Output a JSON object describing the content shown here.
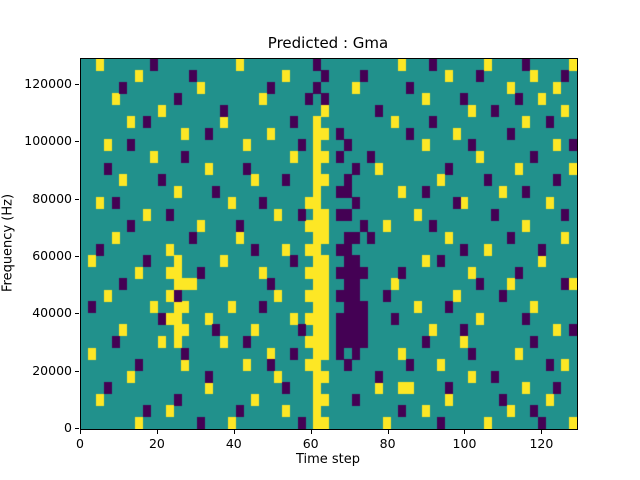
{
  "chart_data": {
    "type": "heatmap",
    "title": "Predicted : Gma",
    "xlabel": "Time step",
    "ylabel": "Frequency (Hz)",
    "xlim": [
      0,
      129
    ],
    "ylim": [
      0,
      129000
    ],
    "xticks": [
      0,
      20,
      40,
      60,
      80,
      100,
      120
    ],
    "yticks": [
      0,
      20000,
      40000,
      60000,
      80000,
      100000,
      120000
    ],
    "colormap": "viridis",
    "colors": {
      "background": "#21918c",
      "yellow": "#fde725",
      "purple": "#440154"
    },
    "grid": {
      "cols": 64,
      "rows": 32
    },
    "yellow_cells": [
      [
        30,
        5
      ],
      [
        30,
        6
      ],
      [
        31,
        6
      ],
      [
        30,
        7
      ],
      [
        30,
        8
      ],
      [
        31,
        8
      ],
      [
        30,
        9
      ],
      [
        30,
        10
      ],
      [
        31,
        10
      ],
      [
        30,
        11
      ],
      [
        29,
        12
      ],
      [
        30,
        12
      ],
      [
        30,
        13
      ],
      [
        31,
        13
      ],
      [
        29,
        14
      ],
      [
        30,
        14
      ],
      [
        31,
        14
      ],
      [
        30,
        15
      ],
      [
        31,
        15
      ],
      [
        29,
        16
      ],
      [
        30,
        16
      ],
      [
        30,
        17
      ],
      [
        31,
        17
      ],
      [
        29,
        18
      ],
      [
        30,
        18
      ],
      [
        31,
        18
      ],
      [
        30,
        19
      ],
      [
        31,
        19
      ],
      [
        29,
        20
      ],
      [
        30,
        20
      ],
      [
        31,
        20
      ],
      [
        30,
        21
      ],
      [
        31,
        21
      ],
      [
        29,
        22
      ],
      [
        30,
        22
      ],
      [
        31,
        22
      ],
      [
        30,
        23
      ],
      [
        31,
        23
      ],
      [
        29,
        24
      ],
      [
        30,
        24
      ],
      [
        31,
        24
      ],
      [
        30,
        25
      ],
      [
        31,
        25
      ],
      [
        29,
        26
      ],
      [
        30,
        26
      ],
      [
        30,
        27
      ],
      [
        31,
        27
      ],
      [
        30,
        28
      ],
      [
        30,
        29
      ],
      [
        31,
        29
      ],
      [
        30,
        30
      ],
      [
        30,
        31
      ],
      [
        31,
        31
      ],
      [
        12,
        17
      ],
      [
        11,
        18
      ],
      [
        12,
        18
      ],
      [
        12,
        19
      ],
      [
        13,
        19
      ],
      [
        11,
        20
      ],
      [
        12,
        20
      ],
      [
        12,
        21
      ],
      [
        13,
        21
      ],
      [
        11,
        22
      ],
      [
        12,
        22
      ],
      [
        12,
        23
      ],
      [
        13,
        23
      ],
      [
        12,
        24
      ],
      [
        2,
        0
      ],
      [
        20,
        0
      ],
      [
        41,
        0
      ],
      [
        52,
        0
      ],
      [
        63,
        0
      ],
      [
        7,
        1
      ],
      [
        26,
        1
      ],
      [
        47,
        1
      ],
      [
        58,
        1
      ],
      [
        15,
        2
      ],
      [
        35,
        2
      ],
      [
        55,
        2
      ],
      [
        61,
        2
      ],
      [
        4,
        3
      ],
      [
        23,
        3
      ],
      [
        44,
        3
      ],
      [
        59,
        3
      ],
      [
        10,
        4
      ],
      [
        31,
        4
      ],
      [
        50,
        4
      ],
      [
        62,
        4
      ],
      [
        6,
        5
      ],
      [
        18,
        5
      ],
      [
        40,
        5
      ],
      [
        57,
        5
      ],
      [
        13,
        6
      ],
      [
        24,
        6
      ],
      [
        48,
        6
      ],
      [
        3,
        7
      ],
      [
        21,
        7
      ],
      [
        44,
        7
      ],
      [
        61,
        7
      ],
      [
        9,
        8
      ],
      [
        27,
        8
      ],
      [
        51,
        8
      ],
      [
        16,
        9
      ],
      [
        38,
        9
      ],
      [
        56,
        9
      ],
      [
        63,
        9
      ],
      [
        5,
        10
      ],
      [
        22,
        10
      ],
      [
        46,
        10
      ],
      [
        12,
        11
      ],
      [
        41,
        11
      ],
      [
        54,
        11
      ],
      [
        2,
        12
      ],
      [
        19,
        12
      ],
      [
        49,
        12
      ],
      [
        60,
        12
      ],
      [
        8,
        13
      ],
      [
        25,
        13
      ],
      [
        43,
        13
      ],
      [
        15,
        14
      ],
      [
        39,
        14
      ],
      [
        57,
        14
      ],
      [
        4,
        15
      ],
      [
        20,
        15
      ],
      [
        47,
        15
      ],
      [
        62,
        15
      ],
      [
        11,
        16
      ],
      [
        26,
        16
      ],
      [
        52,
        16
      ],
      [
        1,
        17
      ],
      [
        18,
        17
      ],
      [
        44,
        17
      ],
      [
        59,
        17
      ],
      [
        7,
        18
      ],
      [
        23,
        18
      ],
      [
        50,
        18
      ],
      [
        14,
        19
      ],
      [
        40,
        19
      ],
      [
        55,
        19
      ],
      [
        63,
        19
      ],
      [
        3,
        20
      ],
      [
        25,
        20
      ],
      [
        48,
        20
      ],
      [
        9,
        21
      ],
      [
        19,
        21
      ],
      [
        43,
        21
      ],
      [
        58,
        21
      ],
      [
        16,
        22
      ],
      [
        27,
        22
      ],
      [
        51,
        22
      ],
      [
        5,
        23
      ],
      [
        22,
        23
      ],
      [
        45,
        23
      ],
      [
        61,
        23
      ],
      [
        10,
        24
      ],
      [
        18,
        24
      ],
      [
        49,
        24
      ],
      [
        1,
        25
      ],
      [
        24,
        25
      ],
      [
        41,
        25
      ],
      [
        56,
        25
      ],
      [
        13,
        26
      ],
      [
        21,
        26
      ],
      [
        46,
        26
      ],
      [
        62,
        26
      ],
      [
        6,
        27
      ],
      [
        25,
        27
      ],
      [
        50,
        27
      ],
      [
        16,
        28
      ],
      [
        38,
        28
      ],
      [
        41,
        28
      ],
      [
        42,
        28
      ],
      [
        57,
        28
      ],
      [
        2,
        29
      ],
      [
        22,
        29
      ],
      [
        47,
        29
      ],
      [
        60,
        29
      ],
      [
        11,
        30
      ],
      [
        26,
        30
      ],
      [
        44,
        30
      ],
      [
        55,
        30
      ],
      [
        7,
        31
      ],
      [
        19,
        31
      ],
      [
        39,
        31
      ],
      [
        52,
        31
      ],
      [
        63,
        31
      ]
    ],
    "purple_cells": [
      [
        33,
        6
      ],
      [
        34,
        7
      ],
      [
        33,
        8
      ],
      [
        35,
        9
      ],
      [
        34,
        10
      ],
      [
        33,
        11
      ],
      [
        34,
        11
      ],
      [
        35,
        12
      ],
      [
        33,
        13
      ],
      [
        34,
        13
      ],
      [
        36,
        14
      ],
      [
        34,
        15
      ],
      [
        35,
        15
      ],
      [
        33,
        16
      ],
      [
        34,
        16
      ],
      [
        34,
        17
      ],
      [
        35,
        17
      ],
      [
        33,
        18
      ],
      [
        34,
        18
      ],
      [
        35,
        18
      ],
      [
        36,
        18
      ],
      [
        34,
        19
      ],
      [
        35,
        19
      ],
      [
        33,
        20
      ],
      [
        34,
        20
      ],
      [
        35,
        20
      ],
      [
        34,
        21
      ],
      [
        35,
        21
      ],
      [
        36,
        21
      ],
      [
        33,
        22
      ],
      [
        34,
        22
      ],
      [
        35,
        22
      ],
      [
        36,
        22
      ],
      [
        33,
        23
      ],
      [
        34,
        23
      ],
      [
        35,
        23
      ],
      [
        36,
        23
      ],
      [
        33,
        24
      ],
      [
        34,
        24
      ],
      [
        35,
        24
      ],
      [
        36,
        24
      ],
      [
        33,
        25
      ],
      [
        35,
        25
      ],
      [
        34,
        26
      ],
      [
        31,
        1
      ],
      [
        30,
        2
      ],
      [
        31,
        3
      ],
      [
        9,
        0
      ],
      [
        30,
        0
      ],
      [
        45,
        0
      ],
      [
        57,
        0
      ],
      [
        14,
        1
      ],
      [
        36,
        1
      ],
      [
        51,
        1
      ],
      [
        62,
        1
      ],
      [
        5,
        2
      ],
      [
        24,
        2
      ],
      [
        42,
        2
      ],
      [
        12,
        3
      ],
      [
        29,
        3
      ],
      [
        49,
        3
      ],
      [
        56,
        3
      ],
      [
        18,
        4
      ],
      [
        38,
        4
      ],
      [
        53,
        4
      ],
      [
        8,
        5
      ],
      [
        27,
        5
      ],
      [
        45,
        5
      ],
      [
        60,
        5
      ],
      [
        16,
        6
      ],
      [
        42,
        6
      ],
      [
        55,
        6
      ],
      [
        6,
        7
      ],
      [
        28,
        7
      ],
      [
        50,
        7
      ],
      [
        63,
        7
      ],
      [
        13,
        8
      ],
      [
        37,
        8
      ],
      [
        58,
        8
      ],
      [
        3,
        9
      ],
      [
        21,
        9
      ],
      [
        47,
        9
      ],
      [
        10,
        10
      ],
      [
        26,
        10
      ],
      [
        52,
        10
      ],
      [
        61,
        10
      ],
      [
        17,
        11
      ],
      [
        44,
        11
      ],
      [
        57,
        11
      ],
      [
        4,
        12
      ],
      [
        23,
        12
      ],
      [
        48,
        12
      ],
      [
        11,
        13
      ],
      [
        28,
        13
      ],
      [
        53,
        13
      ],
      [
        62,
        13
      ],
      [
        6,
        14
      ],
      [
        20,
        14
      ],
      [
        45,
        14
      ],
      [
        14,
        15
      ],
      [
        37,
        15
      ],
      [
        55,
        15
      ],
      [
        2,
        16
      ],
      [
        22,
        16
      ],
      [
        49,
        16
      ],
      [
        59,
        16
      ],
      [
        8,
        17
      ],
      [
        27,
        17
      ],
      [
        46,
        17
      ],
      [
        15,
        18
      ],
      [
        41,
        18
      ],
      [
        56,
        18
      ],
      [
        5,
        19
      ],
      [
        24,
        19
      ],
      [
        51,
        19
      ],
      [
        62,
        19
      ],
      [
        12,
        20
      ],
      [
        39,
        20
      ],
      [
        54,
        20
      ],
      [
        1,
        21
      ],
      [
        23,
        21
      ],
      [
        47,
        21
      ],
      [
        10,
        22
      ],
      [
        40,
        22
      ],
      [
        57,
        22
      ],
      [
        17,
        23
      ],
      [
        28,
        23
      ],
      [
        49,
        23
      ],
      [
        63,
        23
      ],
      [
        4,
        24
      ],
      [
        21,
        24
      ],
      [
        44,
        24
      ],
      [
        58,
        24
      ],
      [
        13,
        25
      ],
      [
        27,
        25
      ],
      [
        50,
        25
      ],
      [
        7,
        26
      ],
      [
        24,
        26
      ],
      [
        42,
        26
      ],
      [
        60,
        26
      ],
      [
        16,
        27
      ],
      [
        38,
        27
      ],
      [
        53,
        27
      ],
      [
        3,
        28
      ],
      [
        26,
        28
      ],
      [
        47,
        28
      ],
      [
        61,
        28
      ],
      [
        12,
        29
      ],
      [
        35,
        29
      ],
      [
        54,
        29
      ],
      [
        8,
        30
      ],
      [
        20,
        30
      ],
      [
        41,
        30
      ],
      [
        58,
        30
      ],
      [
        15,
        31
      ],
      [
        28,
        31
      ],
      [
        46,
        31
      ],
      [
        59,
        31
      ]
    ]
  }
}
